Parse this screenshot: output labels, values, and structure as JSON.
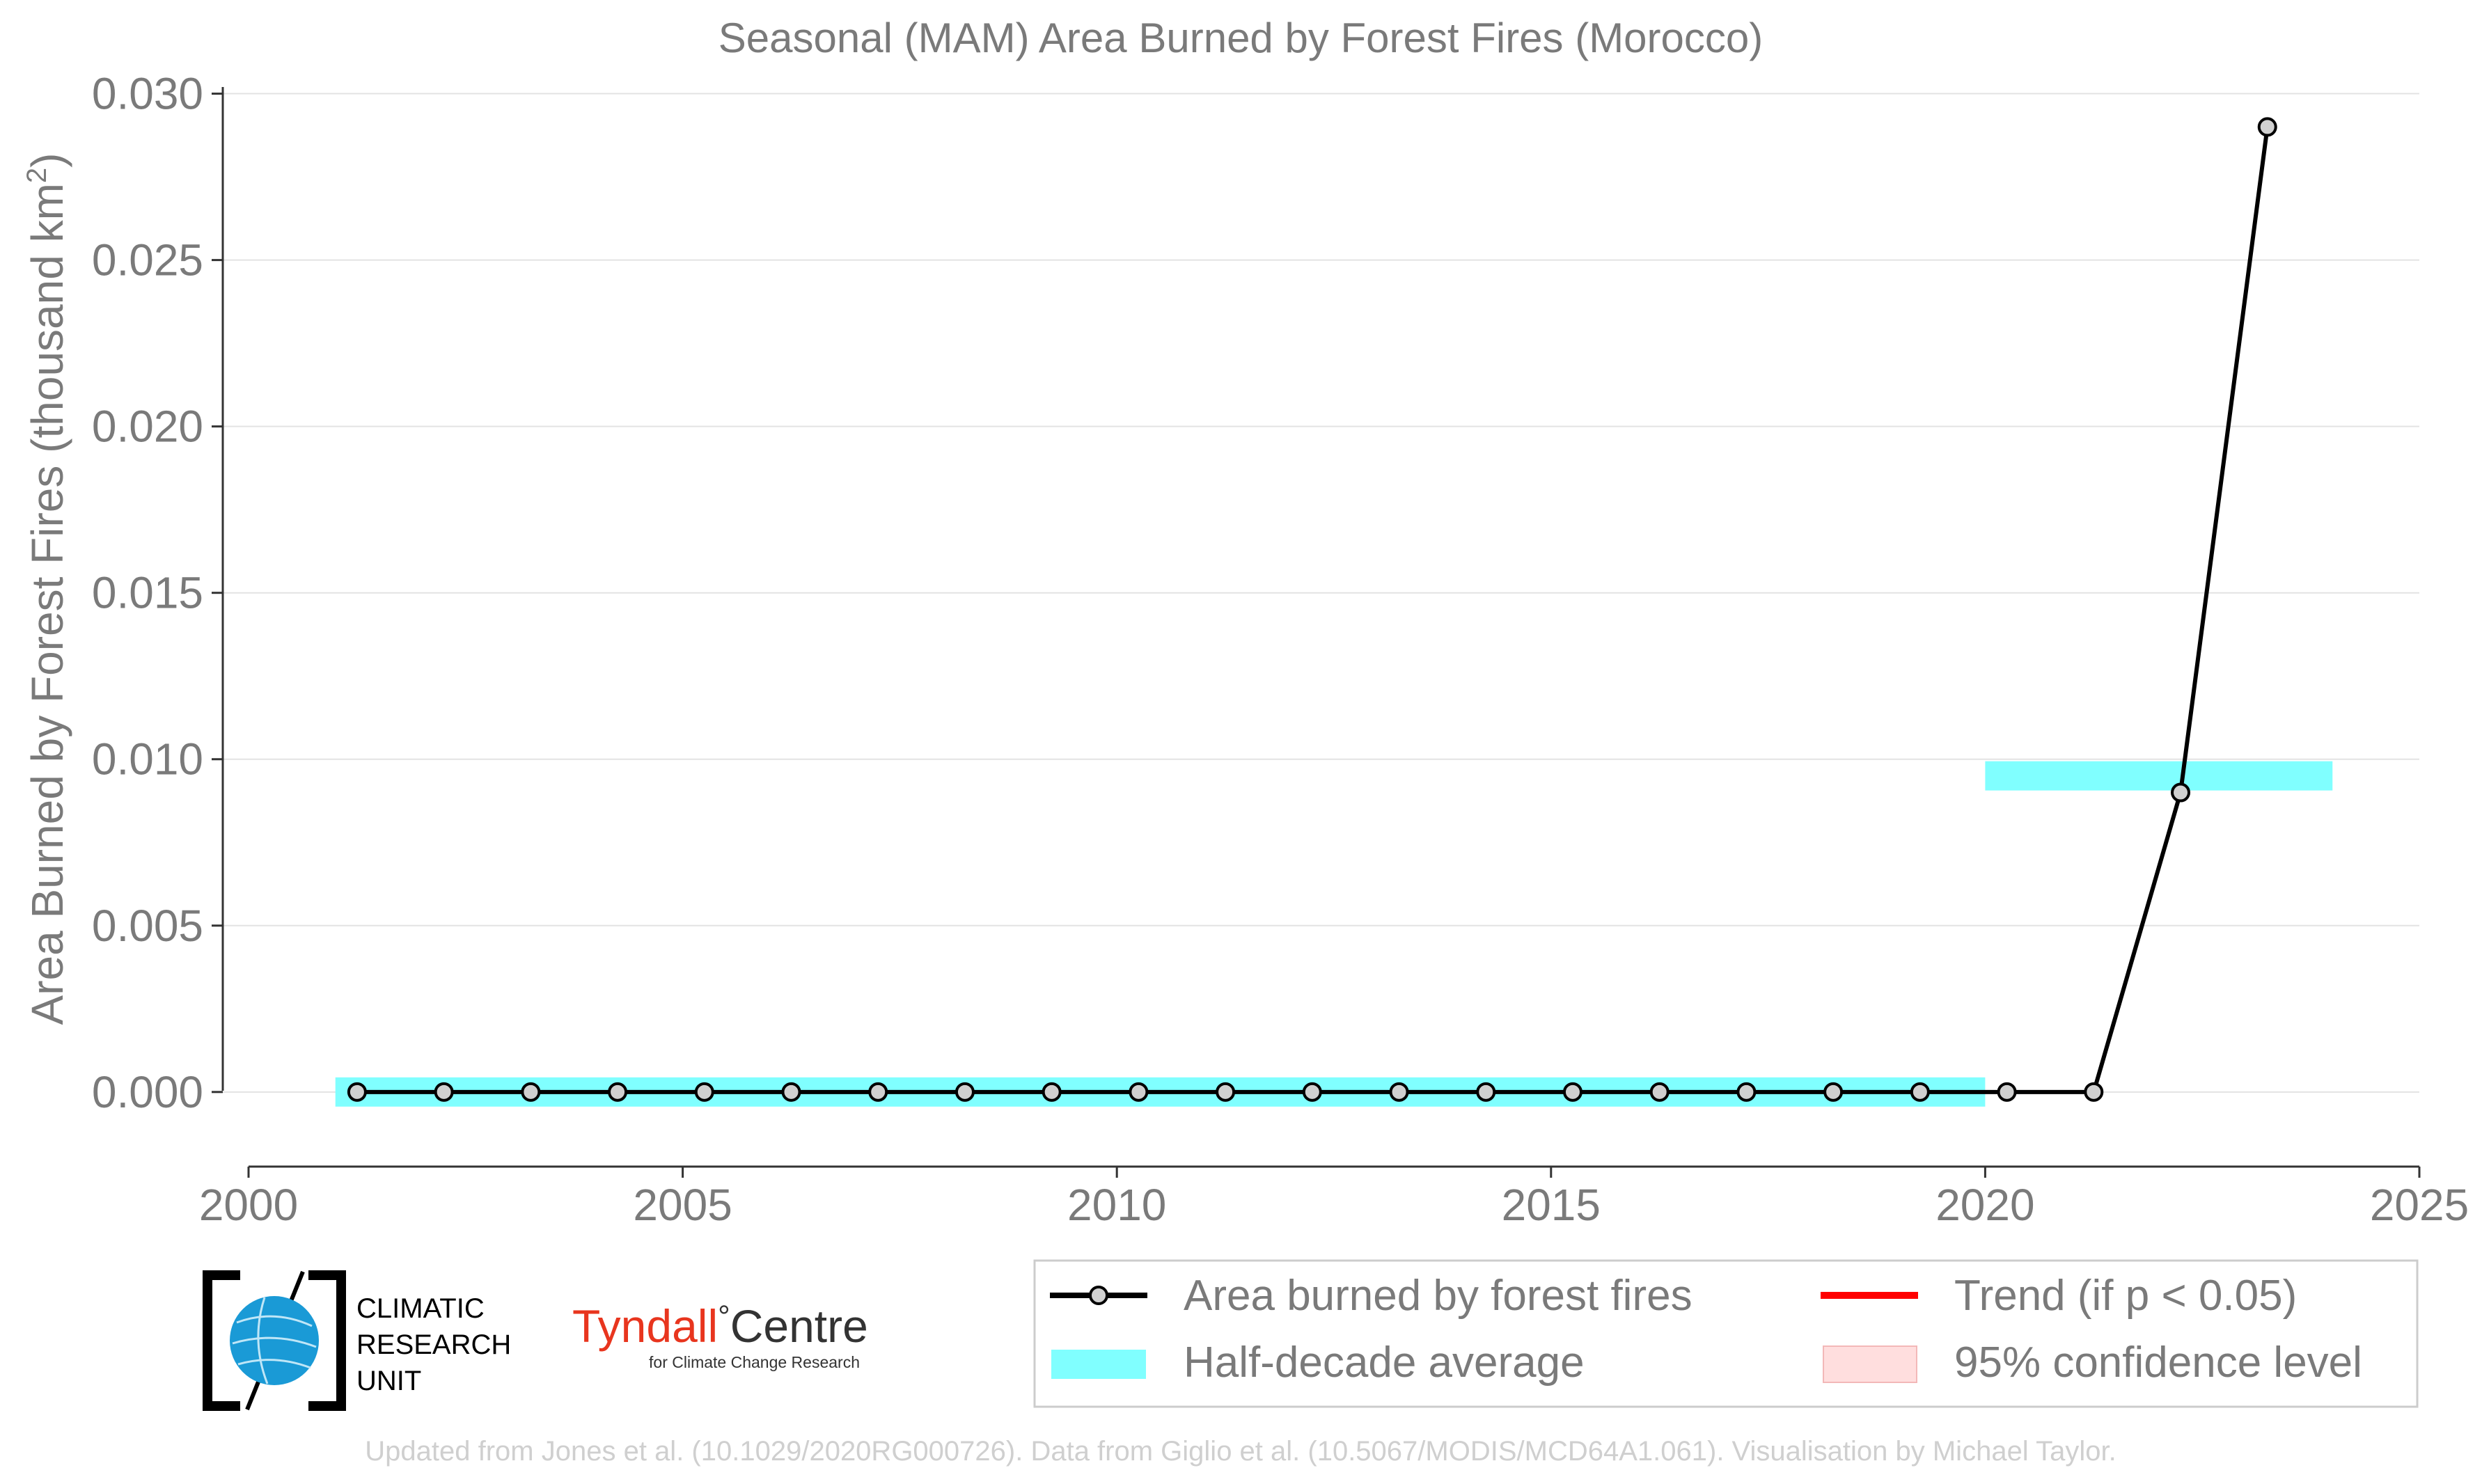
{
  "chart_data": {
    "type": "line",
    "title": "Seasonal (MAM) Area Burned by Forest Fires (Morocco)",
    "ylabel": "Area Burned by Forest Fires (thousand km²)",
    "ylabel_main": "Area Burned by Forest Fires (thousand km",
    "ylabel_sup": "2",
    "ylabel_close": ")",
    "xlabel": "",
    "xlim": [
      2000,
      2025
    ],
    "ylim": [
      -0.0022,
      0.0302
    ],
    "x_ticks": [
      "2000",
      "2005",
      "2010",
      "2015",
      "2020",
      "2025"
    ],
    "y_ticks": [
      "0.000",
      "0.005",
      "0.010",
      "0.015",
      "0.020",
      "0.025",
      "0.030"
    ],
    "grid": "horizontal",
    "series": [
      {
        "name": "Area burned by forest fires",
        "color": "#000000",
        "x": [
          2001.25,
          2002.25,
          2003.25,
          2004.25,
          2005.25,
          2006.25,
          2007.25,
          2008.25,
          2009.25,
          2010.25,
          2011.25,
          2012.25,
          2013.25,
          2014.25,
          2015.25,
          2016.25,
          2017.25,
          2018.25,
          2019.25,
          2020.25,
          2021.25,
          2022.25,
          2023.25
        ],
        "values": [
          0,
          0,
          0,
          0,
          0,
          0,
          0,
          0,
          0,
          0,
          0,
          0,
          0,
          0,
          0,
          0,
          0,
          0,
          0,
          0,
          0,
          0.009,
          0.029
        ]
      }
    ],
    "half_decade_average": {
      "name": "Half-decade average",
      "color": "#80ffff",
      "segments": [
        {
          "x_start": 2001,
          "x_end": 2020,
          "value": 0.0
        },
        {
          "x_start": 2020,
          "x_end": 2024,
          "value": 0.0095
        }
      ]
    },
    "legend": {
      "placement": "bottom-right",
      "entries": [
        {
          "label": "Area burned by forest fires",
          "kind": "line-marker",
          "color": "#000000"
        },
        {
          "label": "Trend (if p < 0.05)",
          "kind": "line",
          "color": "#ff0000"
        },
        {
          "label": "Half-decade average",
          "kind": "patch",
          "color": "#80ffff"
        },
        {
          "label": "95% confidence level",
          "kind": "patch",
          "color": "#ffdede"
        }
      ]
    }
  },
  "logos": {
    "cru_line1": "CLIMATIC",
    "cru_line2": "RESEARCH",
    "cru_line3": "UNIT",
    "tyndall_main": "Tyndall",
    "tyndall_degree": "°",
    "tyndall_centre": "Centre",
    "tyndall_sub": "for Climate Change Research"
  },
  "credit": "Updated from Jones et al. (10.1029/2020RG000726). Data from Giglio et al. (10.5067/MODIS/MCD64A1.061). Visualisation by Michael Taylor."
}
